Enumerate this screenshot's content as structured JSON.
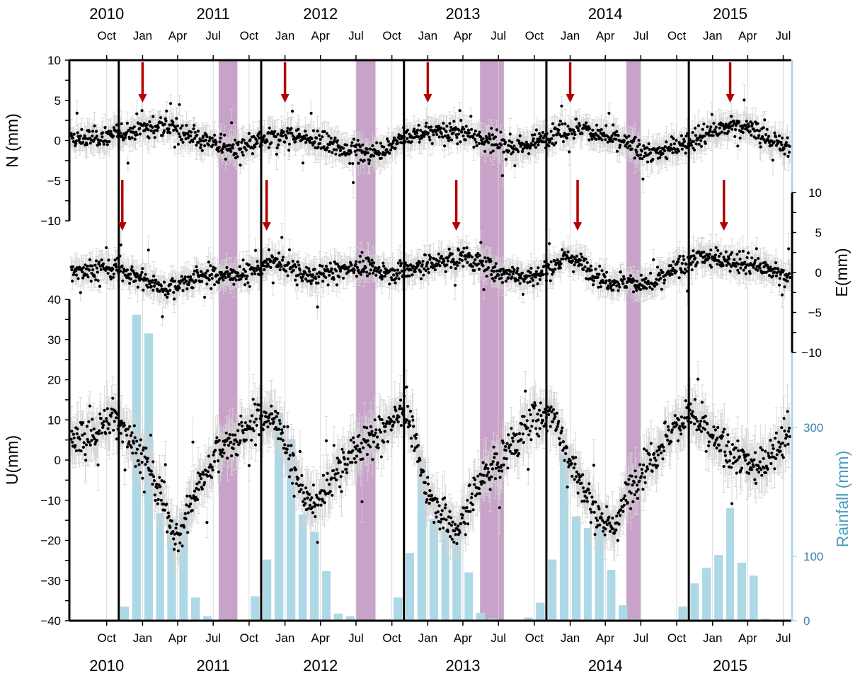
{
  "colors": {
    "rain": "#add8e6",
    "dry_season": "#c8a2c8",
    "arrow": "#b30000",
    "point": "#000000",
    "errorbar": "#d3d3d3",
    "rain_axis_text": "#3a86a8"
  },
  "chart_data": {
    "type": "scatter",
    "time_axis": {
      "range": [
        "2010-07-01",
        "2015-07-20"
      ],
      "months": [
        {
          "date": "2010-10-01",
          "label": "Oct"
        },
        {
          "date": "2011-01-01",
          "label": "Jan"
        },
        {
          "date": "2011-04-01",
          "label": "Apr"
        },
        {
          "date": "2011-07-01",
          "label": "Jul"
        },
        {
          "date": "2011-10-01",
          "label": "Oct"
        },
        {
          "date": "2012-01-01",
          "label": "Jan"
        },
        {
          "date": "2012-04-01",
          "label": "Apr"
        },
        {
          "date": "2012-07-01",
          "label": "Jul"
        },
        {
          "date": "2012-10-01",
          "label": "Oct"
        },
        {
          "date": "2013-01-01",
          "label": "Jan"
        },
        {
          "date": "2013-04-01",
          "label": "Apr"
        },
        {
          "date": "2013-07-01",
          "label": "Jul"
        },
        {
          "date": "2013-10-01",
          "label": "Oct"
        },
        {
          "date": "2014-01-01",
          "label": "Jan"
        },
        {
          "date": "2014-04-01",
          "label": "Apr"
        },
        {
          "date": "2014-07-01",
          "label": "Jul"
        },
        {
          "date": "2014-10-01",
          "label": "Oct"
        },
        {
          "date": "2015-01-01",
          "label": "Jan"
        },
        {
          "date": "2015-04-01",
          "label": "Apr"
        },
        {
          "date": "2015-07-01",
          "label": "Jul"
        }
      ],
      "years": [
        {
          "date": "2010-10-01",
          "label": "2010"
        },
        {
          "date": "2011-07-01",
          "label": "2011"
        },
        {
          "date": "2012-04-01",
          "label": "2012"
        },
        {
          "date": "2013-04-01",
          "label": "2013"
        },
        {
          "date": "2014-04-01",
          "label": "2014"
        },
        {
          "date": "2015-02-15",
          "label": "2015"
        }
      ],
      "year_markers": [
        "2010-11-01",
        "2011-11-01",
        "2012-11-01",
        "2013-11-01",
        "2014-11-01"
      ],
      "dry_seasons": [
        [
          "2011-07-15",
          "2011-09-01"
        ],
        [
          "2012-07-01",
          "2012-08-20"
        ],
        [
          "2013-05-15",
          "2013-07-15"
        ],
        [
          "2014-05-25",
          "2014-07-01"
        ]
      ]
    },
    "panels": [
      {
        "id": "N",
        "ylabel": "N (mm)",
        "ylim": [
          -10,
          10
        ],
        "ticks": [
          10,
          5,
          0,
          -5,
          -10
        ],
        "tick_labels": [
          "10",
          "5",
          "0",
          "−5",
          "−10"
        ],
        "side": "left",
        "arrows": [
          "2011-01-01",
          "2012-01-01",
          "2013-01-01",
          "2014-01-01",
          "2015-02-15"
        ],
        "trend": [
          [
            "2010-07-01",
            0
          ],
          [
            "2010-10-01",
            0.5
          ],
          [
            "2011-01-01",
            1.5
          ],
          [
            "2011-03-01",
            1.8
          ],
          [
            "2011-06-01",
            0.2
          ],
          [
            "2011-09-01",
            -1.2
          ],
          [
            "2011-12-01",
            0.4
          ],
          [
            "2012-01-15",
            0.8
          ],
          [
            "2012-04-01",
            -0.3
          ],
          [
            "2012-08-01",
            -1.8
          ],
          [
            "2012-11-01",
            0.2
          ],
          [
            "2013-01-15",
            1.2
          ],
          [
            "2013-04-01",
            1.0
          ],
          [
            "2013-07-01",
            -0.5
          ],
          [
            "2013-09-01",
            -0.8
          ],
          [
            "2013-12-01",
            1.2
          ],
          [
            "2014-02-01",
            1.5
          ],
          [
            "2014-05-01",
            0.0
          ],
          [
            "2014-08-01",
            -1.8
          ],
          [
            "2014-11-01",
            0.0
          ],
          [
            "2015-03-01",
            2.0
          ],
          [
            "2015-05-01",
            1.0
          ],
          [
            "2015-07-20",
            -1.2
          ]
        ]
      },
      {
        "id": "E",
        "ylabel": "E(mm)",
        "ylim": [
          -10,
          10
        ],
        "ticks": [
          10,
          5,
          0,
          -5,
          -10
        ],
        "tick_labels": [
          "10",
          "5",
          "0",
          "−5",
          "−10"
        ],
        "side": "right",
        "arrows": [
          "2010-11-10",
          "2011-11-15",
          "2013-03-15",
          "2014-01-20",
          "2015-01-30"
        ],
        "trend": [
          [
            "2010-07-01",
            0.3
          ],
          [
            "2010-11-01",
            0.5
          ],
          [
            "2011-03-01",
            -2.0
          ],
          [
            "2011-06-01",
            -0.5
          ],
          [
            "2011-10-01",
            0.0
          ],
          [
            "2011-12-01",
            1.5
          ],
          [
            "2012-03-01",
            -0.5
          ],
          [
            "2012-07-01",
            0.8
          ],
          [
            "2012-10-01",
            0.0
          ],
          [
            "2013-01-01",
            1.0
          ],
          [
            "2013-04-01",
            2.0
          ],
          [
            "2013-07-01",
            0.0
          ],
          [
            "2013-10-01",
            -0.5
          ],
          [
            "2014-01-01",
            2.0
          ],
          [
            "2014-04-01",
            -1.0
          ],
          [
            "2014-08-01",
            -1.5
          ],
          [
            "2014-10-01",
            0.5
          ],
          [
            "2014-12-01",
            2.0
          ],
          [
            "2015-03-01",
            1.5
          ],
          [
            "2015-07-20",
            -0.5
          ]
        ]
      },
      {
        "id": "U",
        "ylabel": "U(mm)",
        "ylim": [
          -40,
          40
        ],
        "ticks": [
          40,
          30,
          20,
          10,
          0,
          -10,
          -20,
          -30,
          -40
        ],
        "tick_labels": [
          "40",
          "30",
          "20",
          "10",
          "0",
          "−10",
          "−20",
          "−30",
          "−40"
        ],
        "side": "left",
        "trend": [
          [
            "2010-07-01",
            4
          ],
          [
            "2010-09-15",
            8
          ],
          [
            "2010-10-20",
            11
          ],
          [
            "2010-12-01",
            6
          ],
          [
            "2011-02-01",
            -5
          ],
          [
            "2011-04-01",
            -20
          ],
          [
            "2011-05-15",
            -8
          ],
          [
            "2011-07-15",
            3
          ],
          [
            "2011-09-01",
            5
          ],
          [
            "2011-11-01",
            11
          ],
          [
            "2011-12-15",
            10
          ],
          [
            "2012-02-01",
            -5
          ],
          [
            "2012-03-15",
            -12
          ],
          [
            "2012-05-01",
            -5
          ],
          [
            "2012-07-01",
            3
          ],
          [
            "2012-09-15",
            8
          ],
          [
            "2012-11-01",
            14
          ],
          [
            "2013-01-01",
            -8
          ],
          [
            "2013-03-15",
            -18
          ],
          [
            "2013-05-15",
            -5
          ],
          [
            "2013-08-01",
            3
          ],
          [
            "2013-10-01",
            10
          ],
          [
            "2013-11-15",
            12
          ],
          [
            "2014-01-01",
            0
          ],
          [
            "2014-03-01",
            -12
          ],
          [
            "2014-04-15",
            -18
          ],
          [
            "2014-06-15",
            -5
          ],
          [
            "2014-09-01",
            5
          ],
          [
            "2014-11-01",
            12
          ],
          [
            "2015-01-01",
            5
          ],
          [
            "2015-03-15",
            0
          ],
          [
            "2015-05-01",
            -2
          ],
          [
            "2015-07-20",
            8
          ]
        ]
      }
    ],
    "rainfall": {
      "ylabel": "Rainfall (mm)",
      "ylim": [
        0,
        500
      ],
      "ticks": [
        0,
        100,
        300
      ],
      "tick_labels": [
        "0",
        "100",
        "300"
      ],
      "bars": [
        {
          "date": "2010-11-01",
          "value": 22
        },
        {
          "date": "2010-12-01",
          "value": 475
        },
        {
          "date": "2011-01-01",
          "value": 446
        },
        {
          "date": "2011-02-01",
          "value": 167
        },
        {
          "date": "2011-03-01",
          "value": 158
        },
        {
          "date": "2011-04-01",
          "value": 168
        },
        {
          "date": "2011-05-01",
          "value": 36
        },
        {
          "date": "2011-06-01",
          "value": 7
        },
        {
          "date": "2011-10-01",
          "value": 38
        },
        {
          "date": "2011-11-01",
          "value": 95
        },
        {
          "date": "2011-12-01",
          "value": 323
        },
        {
          "date": "2012-01-01",
          "value": 282
        },
        {
          "date": "2012-02-01",
          "value": 165
        },
        {
          "date": "2012-03-01",
          "value": 138
        },
        {
          "date": "2012-04-01",
          "value": 77
        },
        {
          "date": "2012-05-01",
          "value": 11
        },
        {
          "date": "2012-06-01",
          "value": 7
        },
        {
          "date": "2012-09-01",
          "value": 2
        },
        {
          "date": "2012-10-01",
          "value": 36
        },
        {
          "date": "2012-11-01",
          "value": 105
        },
        {
          "date": "2012-12-01",
          "value": 250
        },
        {
          "date": "2013-01-01",
          "value": 158
        },
        {
          "date": "2013-02-01",
          "value": 140
        },
        {
          "date": "2013-03-01",
          "value": 148
        },
        {
          "date": "2013-04-01",
          "value": 75
        },
        {
          "date": "2013-05-01",
          "value": 12
        },
        {
          "date": "2013-06-01",
          "value": 4
        },
        {
          "date": "2013-09-01",
          "value": 5
        },
        {
          "date": "2013-10-01",
          "value": 28
        },
        {
          "date": "2013-11-01",
          "value": 95
        },
        {
          "date": "2013-12-01",
          "value": 260
        },
        {
          "date": "2014-01-01",
          "value": 162
        },
        {
          "date": "2014-02-01",
          "value": 144
        },
        {
          "date": "2014-03-01",
          "value": 152
        },
        {
          "date": "2014-04-01",
          "value": 79
        },
        {
          "date": "2014-05-01",
          "value": 24
        },
        {
          "date": "2014-06-01",
          "value": 3
        },
        {
          "date": "2014-10-01",
          "value": 22
        },
        {
          "date": "2014-11-01",
          "value": 58
        },
        {
          "date": "2014-12-01",
          "value": 82
        },
        {
          "date": "2015-01-01",
          "value": 102
        },
        {
          "date": "2015-02-01",
          "value": 175
        },
        {
          "date": "2015-03-01",
          "value": 90
        },
        {
          "date": "2015-04-01",
          "value": 70
        },
        {
          "date": "2015-05-01",
          "value": 3
        }
      ]
    }
  }
}
